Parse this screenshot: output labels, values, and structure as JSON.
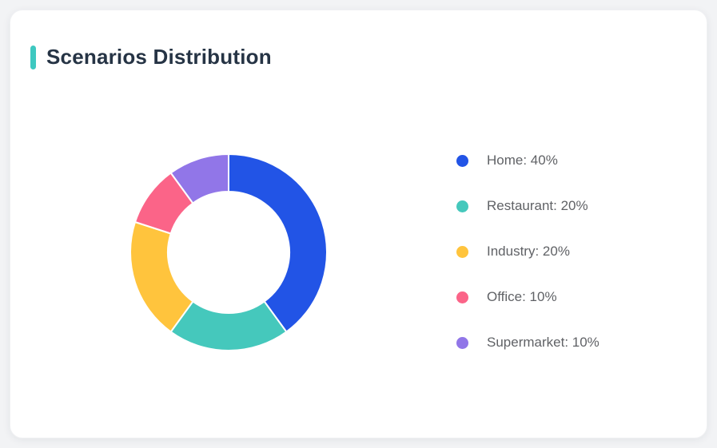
{
  "page": {
    "background_color": "#f2f3f5",
    "card_background": "#ffffff"
  },
  "card": {
    "title": "Scenarios Distribution",
    "accent_color": "#3ec8c0",
    "title_color": "#263445"
  },
  "chart_data": {
    "type": "pie",
    "subtype": "donut",
    "title": "Scenarios Distribution",
    "direction": "clockwise",
    "start_angle_deg": 0,
    "inner_radius_ratio": 0.62,
    "legend_position": "right",
    "legend_text_color": "#606266",
    "segments": [
      {
        "label": "Home",
        "value": 40,
        "display": "Home: 40%",
        "color": "#2254e6"
      },
      {
        "label": "Restaurant",
        "value": 20,
        "display": "Restaurant: 20%",
        "color": "#45c8bc"
      },
      {
        "label": "Industry",
        "value": 20,
        "display": "Industry: 20%",
        "color": "#ffc43d"
      },
      {
        "label": "Office",
        "value": 10,
        "display": "Office: 10%",
        "color": "#fb6488"
      },
      {
        "label": "Supermarket",
        "value": 10,
        "display": "Supermarket: 10%",
        "color": "#9176e8"
      }
    ]
  }
}
